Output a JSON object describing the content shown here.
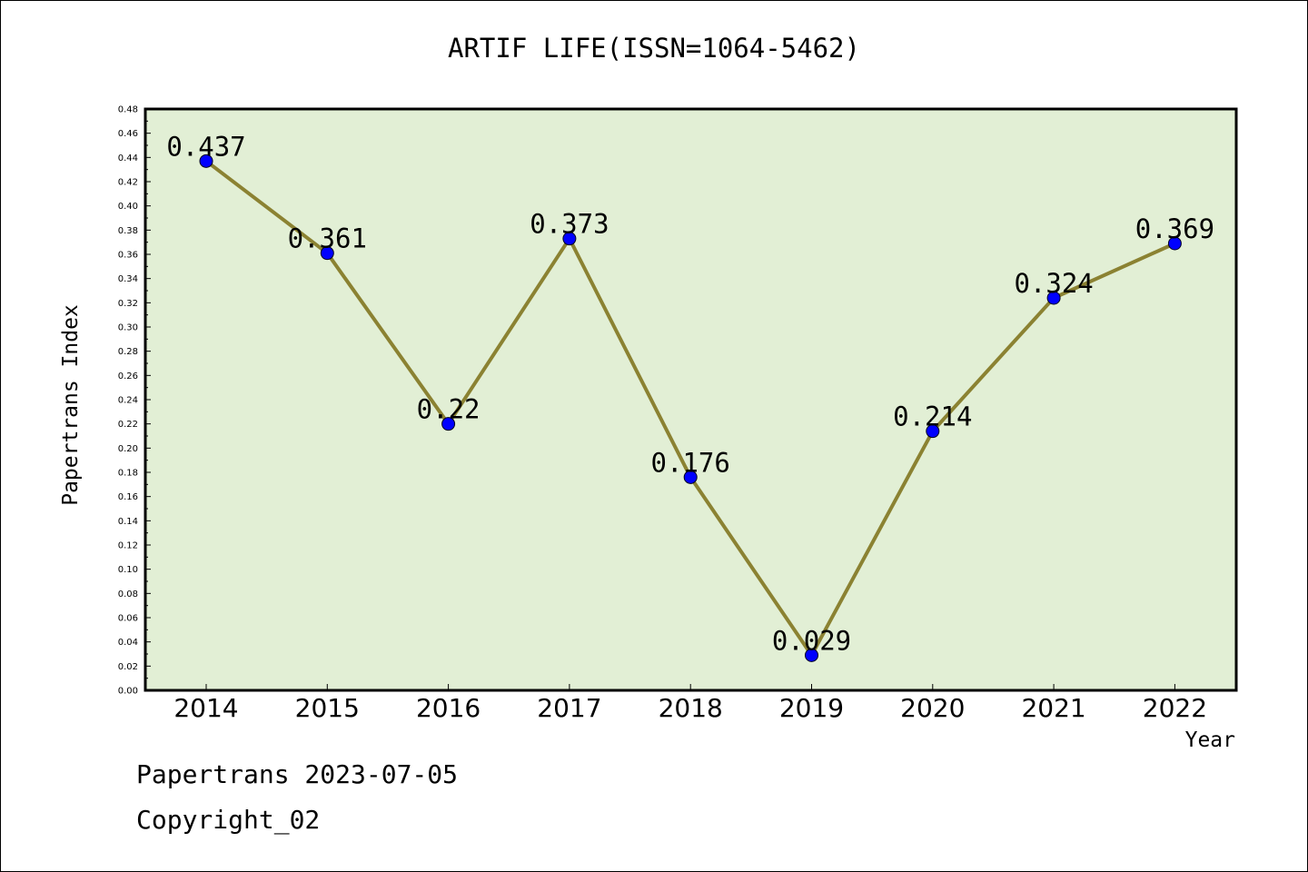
{
  "chart_data": {
    "type": "line",
    "title": "ARTIF LIFE(ISSN=1064-5462)",
    "xlabel": "Year",
    "ylabel": "Papertrans Index",
    "categories": [
      "2014",
      "2015",
      "2016",
      "2017",
      "2018",
      "2019",
      "2020",
      "2021",
      "2022"
    ],
    "series": [
      {
        "values": [
          0.437,
          0.361,
          0.22,
          0.373,
          0.176,
          0.029,
          0.214,
          0.324,
          0.369
        ]
      }
    ],
    "data_labels": [
      "0.437",
      "0.361",
      "0.22",
      "0.373",
      "0.176",
      "0.029",
      "0.214",
      "0.324",
      "0.369"
    ],
    "ylim": [
      0,
      0.48
    ],
    "yticks": [
      "0.00",
      "0.02",
      "0.04",
      "0.06",
      "0.08",
      "0.10",
      "0.12",
      "0.14",
      "0.16",
      "0.18",
      "0.20",
      "0.22",
      "0.24",
      "0.26",
      "0.28",
      "0.30",
      "0.32",
      "0.34",
      "0.36",
      "0.38",
      "0.40",
      "0.42",
      "0.44",
      "0.46",
      "0.48"
    ],
    "grid": false,
    "colors": {
      "plot_background": "#e2efd5",
      "line": "#8b8232",
      "marker": "#0000ff"
    }
  },
  "footer": {
    "line1": "Papertrans 2023-07-05",
    "line2": "Copyright_02"
  }
}
